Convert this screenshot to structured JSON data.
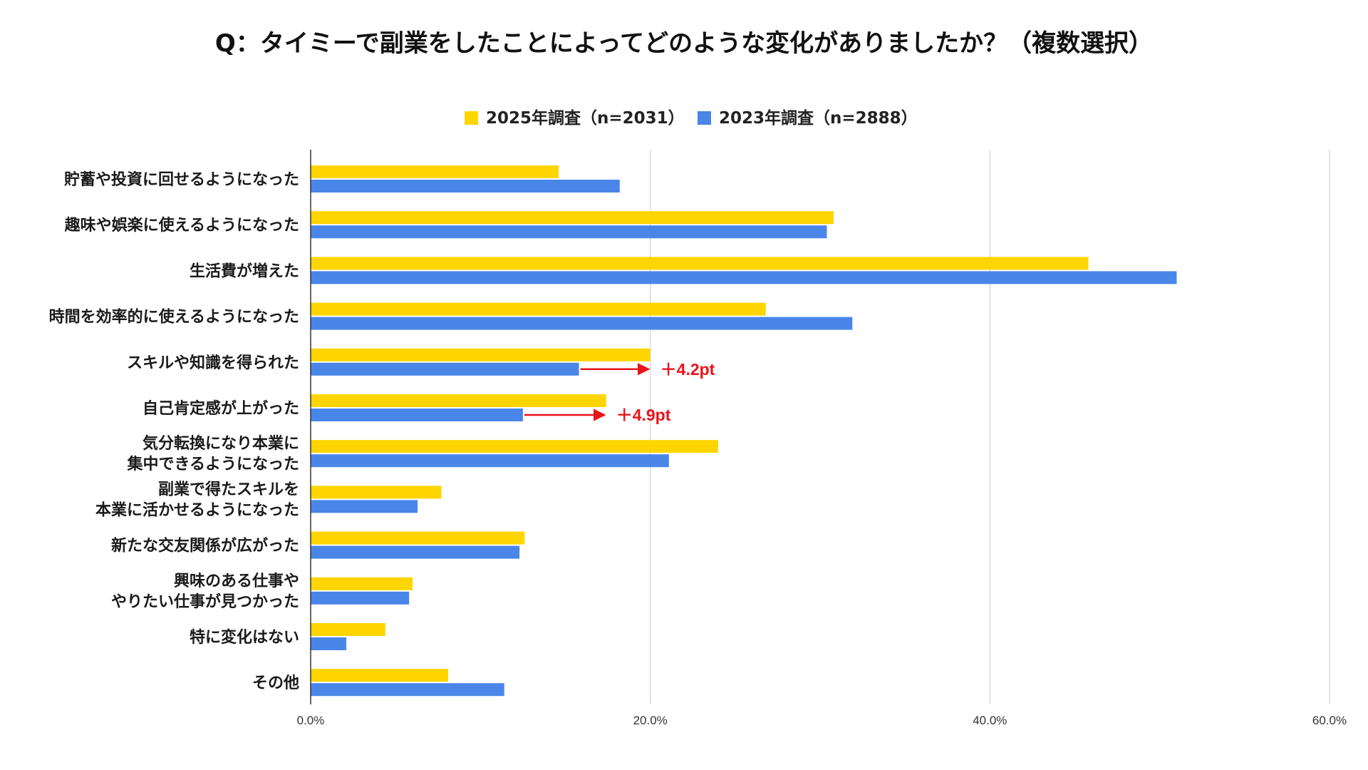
{
  "chart_data": {
    "type": "bar",
    "orientation": "horizontal",
    "title": "Q：タイミーで副業をしたことによってどのような変化がありましたか？（複数選択）",
    "categories": [
      [
        "貯蓄や投資に回せるようになった"
      ],
      [
        "趣味や娯楽に使えるようになった"
      ],
      [
        "生活費が増えた"
      ],
      [
        "時間を効率的に使えるようになった"
      ],
      [
        "スキルや知識を得られた"
      ],
      [
        "自己肯定感が上がった"
      ],
      [
        "気分転換になり本業に",
        "集中できるようになった"
      ],
      [
        "副業で得たスキルを",
        "本業に活かせるようになった"
      ],
      [
        "新たな交友関係が広がった"
      ],
      [
        "興味のある仕事や",
        "やりたい仕事が見つかった"
      ],
      [
        "特に変化はない"
      ],
      [
        "その他"
      ]
    ],
    "series": [
      {
        "name": "2025年調査（n=2031）",
        "color": "#FFD500",
        "values": [
          14.6,
          30.8,
          45.8,
          26.8,
          20.0,
          17.4,
          24.0,
          7.7,
          12.6,
          6.0,
          4.4,
          8.1
        ]
      },
      {
        "name": "2023年調査（n=2888）",
        "color": "#4A86E8",
        "values": [
          18.2,
          30.4,
          51.0,
          31.9,
          15.8,
          12.5,
          21.1,
          6.3,
          12.3,
          5.8,
          2.1,
          11.4
        ]
      }
    ],
    "xlim": [
      0,
      60
    ],
    "xticks": [
      0,
      20,
      40,
      60
    ],
    "xtick_labels": [
      "0.0%",
      "20.0%",
      "40.0%",
      "60.0%"
    ],
    "grid": true,
    "legend_position": "top-center",
    "annotations": [
      {
        "category_index": 4,
        "from": 15.8,
        "to": 20.0,
        "text": "＋4.2pt",
        "color": "#E8141B"
      },
      {
        "category_index": 5,
        "from": 12.5,
        "to": 17.4,
        "text": "＋4.9pt",
        "color": "#E8141B"
      }
    ]
  }
}
